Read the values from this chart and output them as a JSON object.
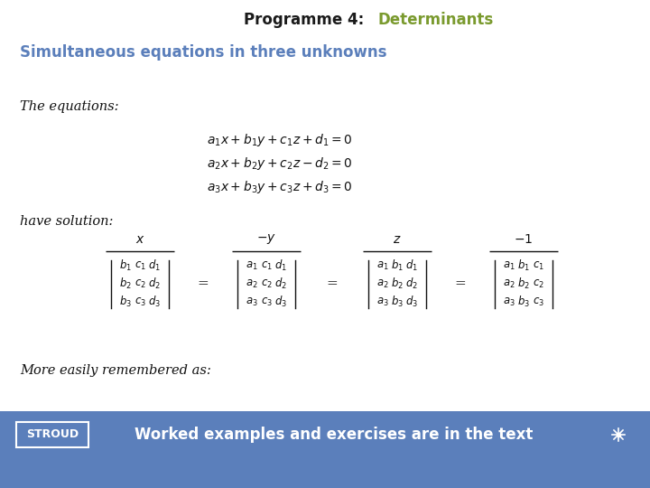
{
  "bg_color": "#ffffff",
  "title_black": "Programme 4:  ",
  "title_green": "Determinants",
  "subtitle": "Simultaneous equations in three unknowns",
  "subtitle_color": "#5b7fbb",
  "the_equations_label": "The equations:",
  "have_solution_label": "have solution:",
  "more_easily_label": "More easily remembered as:",
  "footer_bg": "#5b7fbb",
  "footer_text": "Worked examples and exercises are in the text",
  "footer_label": "STROUD",
  "eq1": "$a_1x+b_1y+c_1z+d_1=0$",
  "eq2": "$a_2x+b_2y+c_2z-d_2=0$",
  "eq3": "$a_3x+b_3y+c_3z+d_3=0$",
  "sol_x": "$x$",
  "sol_neg_y": "$-y$",
  "sol_z": "$z$",
  "sol_neg_1": "$-1$",
  "det1_rows": [
    [
      "$b_1$",
      "$c_1$",
      "$d_1$"
    ],
    [
      "$b_2$",
      "$c_2$",
      "$d_2$"
    ],
    [
      "$b_3$",
      "$c_3$",
      "$d_3$"
    ]
  ],
  "det2_rows": [
    [
      "$a_1$",
      "$c_1$",
      "$d_1$"
    ],
    [
      "$a_2$",
      "$c_2$",
      "$d_2$"
    ],
    [
      "$a_3$",
      "$c_3$",
      "$d_3$"
    ]
  ],
  "det3_rows": [
    [
      "$a_1$",
      "$b_1$",
      "$d_1$"
    ],
    [
      "$a_2$",
      "$b_2$",
      "$d_2$"
    ],
    [
      "$a_3$",
      "$b_3$",
      "$d_3$"
    ]
  ],
  "det4_rows": [
    [
      "$a_1$",
      "$b_1$",
      "$c_1$"
    ],
    [
      "$a_2$",
      "$b_2$",
      "$c_2$"
    ],
    [
      "$a_3$",
      "$b_3$",
      "$c_3$"
    ]
  ]
}
